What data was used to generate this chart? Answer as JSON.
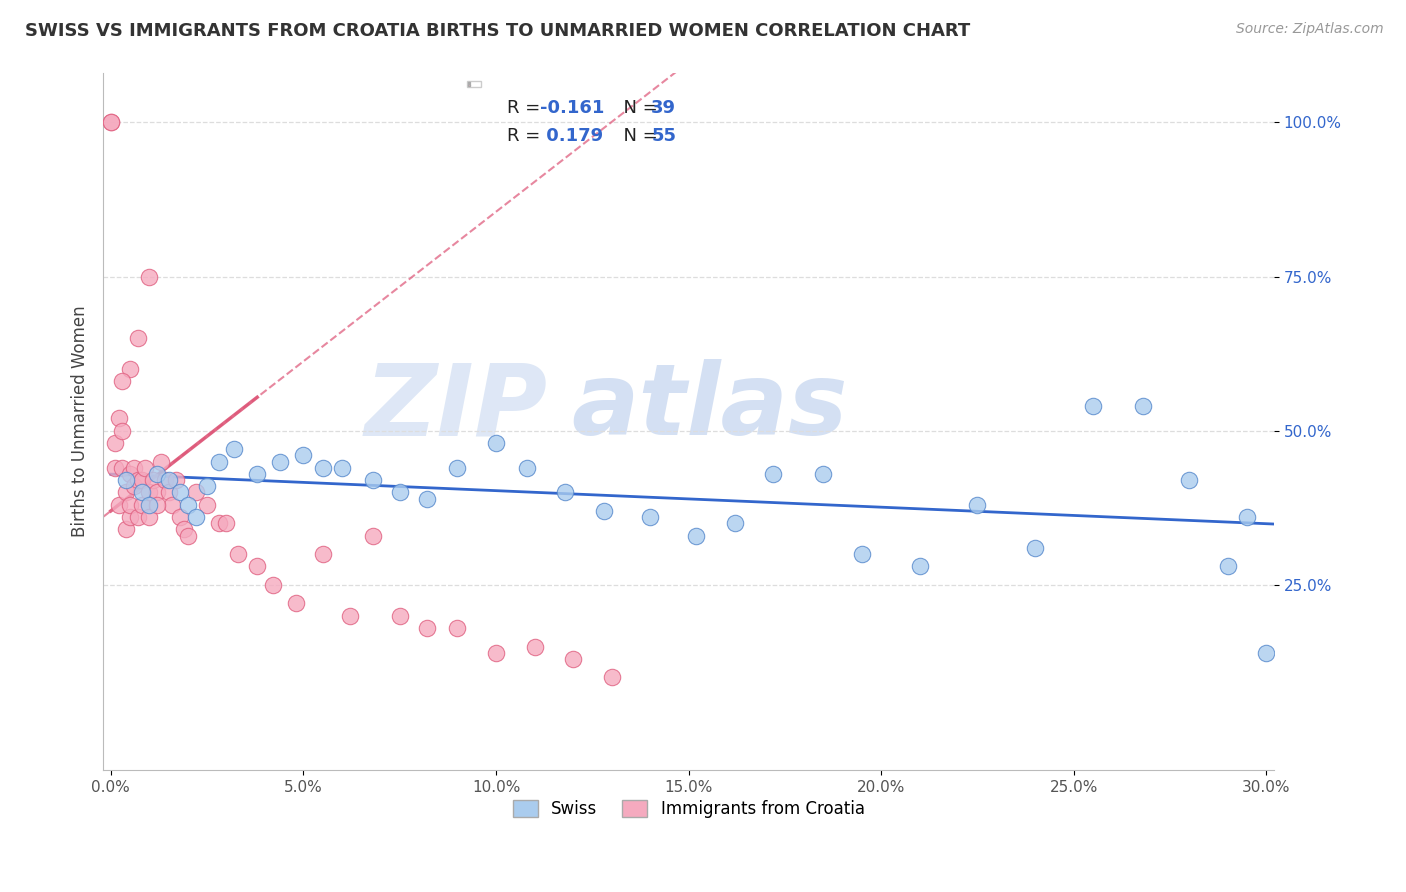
{
  "title": "SWISS VS IMMIGRANTS FROM CROATIA BIRTHS TO UNMARRIED WOMEN CORRELATION CHART",
  "source": "Source: ZipAtlas.com",
  "ylabel": "Births to Unmarried Women",
  "xlim": [
    -0.002,
    0.302
  ],
  "ylim": [
    -0.05,
    1.08
  ],
  "ytick_vals": [
    0.25,
    0.5,
    0.75,
    1.0
  ],
  "xtick_vals": [
    0.0,
    0.05,
    0.1,
    0.15,
    0.2,
    0.25,
    0.3
  ],
  "swiss_color": "#aaccee",
  "croatia_color": "#f5aabf",
  "swiss_edge_color": "#5588cc",
  "croatia_edge_color": "#e06080",
  "trend_swiss_color": "#3366cc",
  "trend_croatia_color": "#dd5577",
  "swiss_x": [
    0.004,
    0.008,
    0.01,
    0.012,
    0.015,
    0.018,
    0.02,
    0.022,
    0.025,
    0.028,
    0.032,
    0.038,
    0.044,
    0.05,
    0.055,
    0.06,
    0.068,
    0.075,
    0.082,
    0.09,
    0.1,
    0.108,
    0.118,
    0.128,
    0.14,
    0.152,
    0.162,
    0.172,
    0.185,
    0.195,
    0.21,
    0.225,
    0.24,
    0.255,
    0.268,
    0.28,
    0.29,
    0.295,
    0.3
  ],
  "swiss_y": [
    0.42,
    0.4,
    0.38,
    0.43,
    0.42,
    0.4,
    0.38,
    0.36,
    0.41,
    0.45,
    0.47,
    0.43,
    0.45,
    0.46,
    0.44,
    0.44,
    0.42,
    0.4,
    0.39,
    0.44,
    0.48,
    0.44,
    0.4,
    0.37,
    0.36,
    0.33,
    0.35,
    0.43,
    0.43,
    0.3,
    0.28,
    0.38,
    0.31,
    0.54,
    0.54,
    0.42,
    0.28,
    0.36,
    0.14
  ],
  "croatia_x": [
    0.0,
    0.0,
    0.001,
    0.001,
    0.002,
    0.002,
    0.003,
    0.003,
    0.004,
    0.004,
    0.005,
    0.005,
    0.005,
    0.006,
    0.006,
    0.007,
    0.007,
    0.008,
    0.008,
    0.009,
    0.01,
    0.01,
    0.011,
    0.012,
    0.013,
    0.014,
    0.015,
    0.016,
    0.017,
    0.018,
    0.019,
    0.02,
    0.022,
    0.025,
    0.028,
    0.03,
    0.033,
    0.038,
    0.042,
    0.048,
    0.055,
    0.062,
    0.068,
    0.075,
    0.082,
    0.09,
    0.1,
    0.11,
    0.12,
    0.13,
    0.01,
    0.012,
    0.005,
    0.007,
    0.003
  ],
  "croatia_y": [
    1.0,
    1.0,
    0.44,
    0.48,
    0.38,
    0.52,
    0.44,
    0.5,
    0.34,
    0.4,
    0.36,
    0.43,
    0.38,
    0.41,
    0.44,
    0.42,
    0.36,
    0.38,
    0.42,
    0.44,
    0.36,
    0.4,
    0.42,
    0.4,
    0.45,
    0.42,
    0.4,
    0.38,
    0.42,
    0.36,
    0.34,
    0.33,
    0.4,
    0.38,
    0.35,
    0.35,
    0.3,
    0.28,
    0.25,
    0.22,
    0.3,
    0.2,
    0.33,
    0.2,
    0.18,
    0.18,
    0.14,
    0.15,
    0.13,
    0.1,
    0.75,
    0.38,
    0.6,
    0.65,
    0.58
  ],
  "trend_swiss_x_start": 0.0,
  "trend_swiss_x_end": 0.3,
  "trend_croatia_x_start": 0.0,
  "trend_croatia_x_end": 0.13,
  "croatia_trend_extended_x_end": 0.3,
  "watermark_zip_color": "#c8d8f0",
  "watermark_atlas_color": "#b8ccec"
}
